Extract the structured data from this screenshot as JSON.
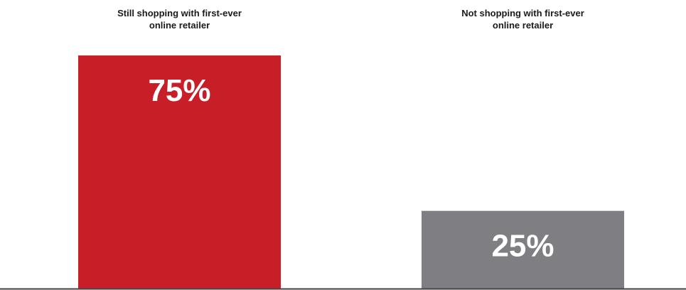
{
  "chart_data": {
    "type": "bar",
    "categories": [
      "Still shopping with first-ever online retailer",
      "Not shopping with first-ever online retailer"
    ],
    "category_lines": [
      [
        "Still shopping with first-ever",
        "online retailer"
      ],
      [
        "Not shopping with first-ever",
        "online retailer"
      ]
    ],
    "values": [
      75,
      25
    ],
    "value_labels": [
      "75%",
      "25%"
    ],
    "colors": [
      "#c81e28",
      "#7f7f83"
    ],
    "ylim": [
      0,
      100
    ],
    "grid": false,
    "legend": "none"
  }
}
